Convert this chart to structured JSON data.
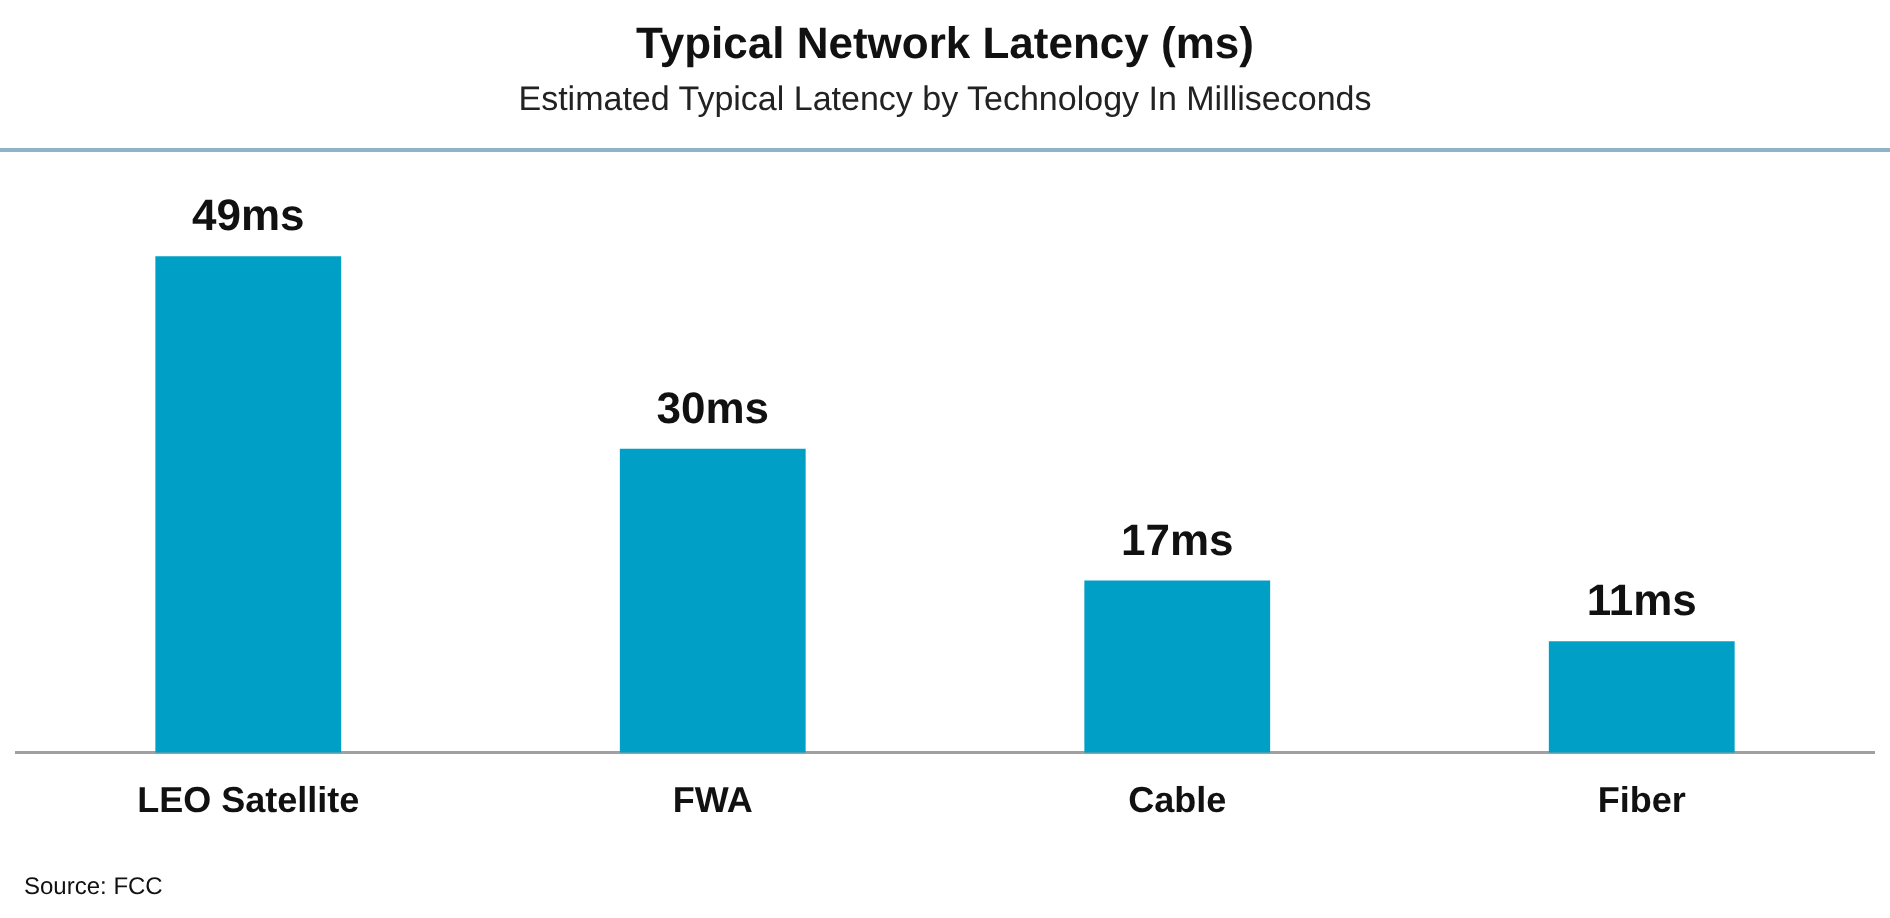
{
  "chart_data": {
    "type": "bar",
    "title": "Typical Network Latency (ms)",
    "subtitle": "Estimated Typical Latency by Technology In Milliseconds",
    "categories": [
      "LEO Satellite",
      "FWA",
      "Cable",
      "Fiber"
    ],
    "values": [
      49,
      30,
      17,
      11
    ],
    "color": "#00a0c6",
    "value_labels": [
      "49ms",
      "30ms",
      "17ms",
      "11ms"
    ],
    "annotations": [
      "Source: FCC"
    ]
  }
}
